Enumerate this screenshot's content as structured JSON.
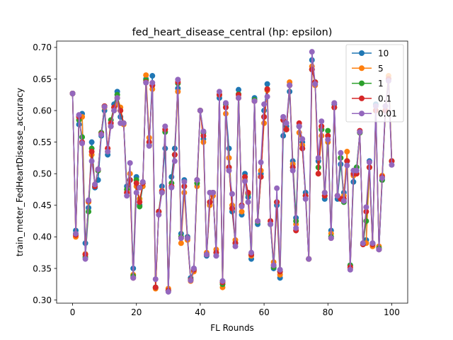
{
  "chart_data": {
    "type": "line",
    "title": "fed_heart_disease_central (hp: epsilon)",
    "xlabel": "FL Rounds",
    "ylabel": "train_meter_FedHeartDisease_accuracy",
    "xlim": [
      -5,
      105
    ],
    "ylim": [
      0.295,
      0.71
    ],
    "xticks": [
      0,
      20,
      40,
      60,
      80,
      100
    ],
    "yticks": [
      0.3,
      0.35,
      0.4,
      0.45,
      0.5,
      0.55,
      0.6,
      0.65,
      0.7
    ],
    "xtick_labels": [
      "0",
      "20",
      "40",
      "60",
      "80",
      "100"
    ],
    "ytick_labels": [
      "0.30",
      "0.35",
      "0.40",
      "0.45",
      "0.50",
      "0.55",
      "0.60",
      "0.65",
      "0.70"
    ],
    "legend_position": "top-right",
    "grid": false,
    "x": [
      0,
      1,
      2,
      3,
      4,
      5,
      6,
      7,
      8,
      9,
      10,
      11,
      12,
      13,
      14,
      15,
      16,
      17,
      18,
      19,
      20,
      21,
      22,
      23,
      24,
      25,
      26,
      27,
      28,
      29,
      30,
      31,
      32,
      33,
      34,
      35,
      36,
      37,
      38,
      39,
      40,
      41,
      42,
      43,
      44,
      45,
      46,
      47,
      48,
      49,
      50,
      51,
      52,
      53,
      54,
      55,
      56,
      57,
      58,
      59,
      60,
      61,
      62,
      63,
      64,
      65,
      66,
      67,
      68,
      69,
      70,
      71,
      72,
      73,
      74,
      75,
      76,
      77,
      78,
      79,
      80,
      81,
      82,
      83,
      84,
      85,
      86,
      87,
      88,
      89,
      90,
      91,
      92,
      93,
      94,
      95,
      96,
      97,
      98,
      99,
      100
    ],
    "series": [
      {
        "name": "10",
        "color": "#1f77b4",
        "values": [
          0.627,
          0.41,
          0.578,
          0.595,
          0.39,
          0.446,
          0.55,
          0.478,
          0.49,
          0.56,
          0.6,
          0.53,
          0.58,
          0.61,
          0.63,
          0.59,
          0.58,
          0.48,
          0.49,
          0.35,
          0.495,
          0.45,
          0.48,
          0.65,
          0.545,
          0.655,
          0.32,
          0.44,
          0.48,
          0.54,
          0.315,
          0.495,
          0.54,
          0.635,
          0.405,
          0.49,
          0.4,
          0.335,
          0.35,
          0.49,
          0.6,
          0.555,
          0.37,
          0.45,
          0.47,
          0.37,
          0.62,
          0.33,
          0.605,
          0.54,
          0.44,
          0.39,
          0.633,
          0.435,
          0.5,
          0.463,
          0.365,
          0.62,
          0.42,
          0.5,
          0.6,
          0.642,
          0.42,
          0.35,
          0.45,
          0.335,
          0.56,
          0.575,
          0.63,
          0.52,
          0.43,
          0.575,
          0.55,
          0.47,
          0.365,
          0.68,
          0.645,
          0.52,
          0.57,
          0.46,
          0.56,
          0.41,
          0.61,
          0.46,
          0.515,
          0.47,
          0.52,
          0.355,
          0.487,
          0.51,
          0.565,
          0.39,
          0.395,
          0.52,
          0.39,
          0.61,
          0.38,
          0.49,
          0.6,
          0.65,
          0.52
        ]
      },
      {
        "name": "5",
        "color": "#ff7f0e",
        "values": [
          0.627,
          0.4,
          0.59,
          0.59,
          0.373,
          0.455,
          0.53,
          0.483,
          0.505,
          0.565,
          0.605,
          0.54,
          0.575,
          0.6,
          0.61,
          0.605,
          0.578,
          0.47,
          0.5,
          0.34,
          0.48,
          0.46,
          0.48,
          0.656,
          0.557,
          0.634,
          0.318,
          0.44,
          0.473,
          0.57,
          0.318,
          0.48,
          0.53,
          0.63,
          0.39,
          0.47,
          0.395,
          0.33,
          0.345,
          0.48,
          0.6,
          0.55,
          0.375,
          0.45,
          0.465,
          0.38,
          0.625,
          0.32,
          0.595,
          0.525,
          0.45,
          0.395,
          0.62,
          0.44,
          0.49,
          0.47,
          0.37,
          0.615,
          0.425,
          0.505,
          0.58,
          0.632,
          0.425,
          0.36,
          0.455,
          0.34,
          0.585,
          0.57,
          0.645,
          0.515,
          0.42,
          0.565,
          0.545,
          0.465,
          0.365,
          0.67,
          0.64,
          0.5,
          0.56,
          0.47,
          0.55,
          0.405,
          0.605,
          0.465,
          0.525,
          0.465,
          0.535,
          0.35,
          0.497,
          0.5,
          0.565,
          0.39,
          0.39,
          0.51,
          0.385,
          0.6,
          0.385,
          0.497,
          0.6,
          0.655,
          0.52
        ]
      },
      {
        "name": "1",
        "color": "#2ca02c",
        "values": [
          0.627,
          0.405,
          0.585,
          0.558,
          0.368,
          0.44,
          0.54,
          0.48,
          0.505,
          0.565,
          0.607,
          0.535,
          0.585,
          0.605,
          0.625,
          0.6,
          0.58,
          0.475,
          0.49,
          0.338,
          0.49,
          0.448,
          0.485,
          0.648,
          0.55,
          0.64,
          0.32,
          0.44,
          0.47,
          0.566,
          0.315,
          0.485,
          0.53,
          0.643,
          0.4,
          0.48,
          0.398,
          0.332,
          0.348,
          0.485,
          0.6,
          0.565,
          0.372,
          0.455,
          0.47,
          0.375,
          0.625,
          0.325,
          0.61,
          0.51,
          0.445,
          0.39,
          0.626,
          0.45,
          0.495,
          0.468,
          0.372,
          0.617,
          0.424,
          0.495,
          0.59,
          0.634,
          0.42,
          0.352,
          0.455,
          0.345,
          0.585,
          0.57,
          0.64,
          0.51,
          0.425,
          0.575,
          0.54,
          0.465,
          0.365,
          0.665,
          0.645,
          0.51,
          0.57,
          0.465,
          0.568,
          0.4,
          0.605,
          0.465,
          0.525,
          0.455,
          0.52,
          0.355,
          0.5,
          0.51,
          0.565,
          0.388,
          0.425,
          0.51,
          0.388,
          0.6,
          0.382,
          0.49,
          0.6,
          0.65,
          0.52
        ]
      },
      {
        "name": "0.1",
        "color": "#d62728",
        "values": [
          0.627,
          0.403,
          0.59,
          0.55,
          0.372,
          0.457,
          0.535,
          0.48,
          0.507,
          0.563,
          0.607,
          0.54,
          0.58,
          0.605,
          0.62,
          0.6,
          0.58,
          0.47,
          0.49,
          0.335,
          0.485,
          0.455,
          0.485,
          0.645,
          0.55,
          0.64,
          0.32,
          0.44,
          0.472,
          0.57,
          0.315,
          0.48,
          0.53,
          0.645,
          0.398,
          0.48,
          0.398,
          0.332,
          0.348,
          0.49,
          0.6,
          0.56,
          0.372,
          0.455,
          0.47,
          0.375,
          0.625,
          0.328,
          0.605,
          0.51,
          0.445,
          0.39,
          0.625,
          0.45,
          0.495,
          0.47,
          0.372,
          0.615,
          0.425,
          0.495,
          0.59,
          0.634,
          0.425,
          0.355,
          0.455,
          0.345,
          0.585,
          0.57,
          0.64,
          0.51,
          0.41,
          0.58,
          0.54,
          0.465,
          0.365,
          0.665,
          0.645,
          0.5,
          0.575,
          0.465,
          0.56,
          0.398,
          0.605,
          0.465,
          0.46,
          0.46,
          0.52,
          0.352,
          0.5,
          0.5,
          0.568,
          0.388,
          0.44,
          0.51,
          0.388,
          0.6,
          0.38,
          0.495,
          0.6,
          0.65,
          0.52
        ]
      },
      {
        "name": "0.01",
        "color": "#9467bd",
        "values": [
          0.627,
          0.405,
          0.593,
          0.548,
          0.365,
          0.458,
          0.52,
          0.483,
          0.507,
          0.562,
          0.606,
          0.535,
          0.575,
          0.6,
          0.62,
          0.58,
          0.58,
          0.465,
          0.517,
          0.335,
          0.47,
          0.478,
          0.487,
          0.644,
          0.544,
          0.644,
          0.333,
          0.435,
          0.47,
          0.575,
          0.313,
          0.478,
          0.52,
          0.649,
          0.398,
          0.487,
          0.398,
          0.331,
          0.35,
          0.49,
          0.6,
          0.567,
          0.372,
          0.47,
          0.47,
          0.37,
          0.63,
          0.33,
          0.612,
          0.505,
          0.468,
          0.385,
          0.62,
          0.448,
          0.488,
          0.455,
          0.375,
          0.615,
          0.425,
          0.518,
          0.61,
          0.622,
          0.42,
          0.355,
          0.477,
          0.348,
          0.59,
          0.58,
          0.64,
          0.505,
          0.414,
          0.575,
          0.555,
          0.46,
          0.365,
          0.693,
          0.642,
          0.525,
          0.583,
          0.47,
          0.554,
          0.398,
          0.612,
          0.465,
          0.533,
          0.457,
          0.513,
          0.348,
          0.505,
          0.505,
          0.566,
          0.39,
          0.447,
          0.518,
          0.39,
          0.607,
          0.38,
          0.493,
          0.607,
          0.647,
          0.514
        ]
      }
    ]
  }
}
